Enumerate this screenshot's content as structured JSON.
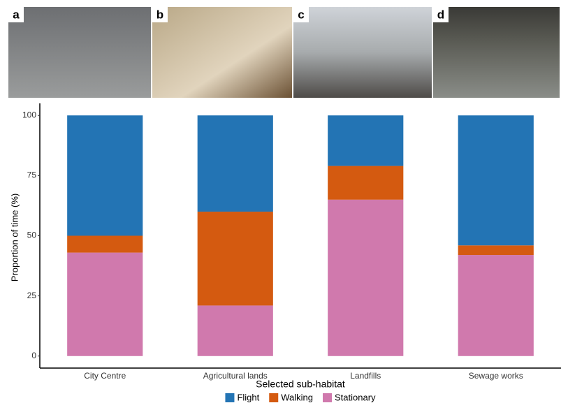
{
  "panel_labels": [
    "a",
    "b",
    "c",
    "d"
  ],
  "chart_data": {
    "type": "stacked-bar",
    "x_label": "Selected sub-habitat",
    "y_label": "Proportion of time (%)",
    "categories": [
      "City Centre",
      "Agricultural lands",
      "Landfills",
      "Sewage works"
    ],
    "series": [
      {
        "name": "Flight",
        "color": "#2374b4",
        "values": [
          50,
          40,
          21,
          54
        ]
      },
      {
        "name": "Walking",
        "color": "#d45a10",
        "values": [
          7,
          39,
          14,
          4
        ]
      },
      {
        "name": "Stationary",
        "color": "#d079ad",
        "values": [
          43,
          21,
          65,
          42
        ]
      }
    ],
    "ylim": [
      -5,
      105
    ],
    "yticks": [
      0,
      25,
      50,
      75,
      100
    ],
    "grid": false,
    "legend": "bottom"
  }
}
